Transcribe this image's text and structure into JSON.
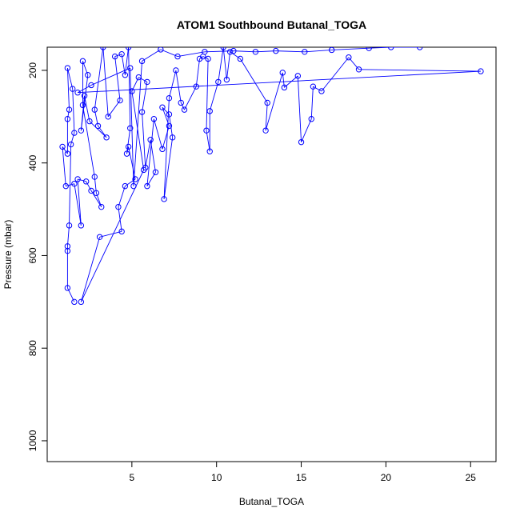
{
  "chart_data": {
    "type": "line",
    "title": "ATOM1 Southbound Butanal_TOGA",
    "xlabel": "Butanal_TOGA",
    "ylabel": "Pressure (mbar)",
    "xlim": [
      0,
      26.5
    ],
    "ylim": [
      1045,
      150
    ],
    "y_reversed": true,
    "xticks": [
      5,
      10,
      15,
      20,
      25
    ],
    "yticks": [
      200,
      400,
      600,
      800,
      1000
    ],
    "grid": false,
    "legend": "none",
    "series_color": "#0000ff",
    "series": [
      {
        "points": [
          [
            1.6,
            700
          ],
          [
            1.2,
            670
          ],
          [
            1.2,
            590
          ],
          [
            1.2,
            580
          ],
          [
            1.3,
            535
          ],
          [
            1.4,
            360
          ],
          [
            1.6,
            335
          ],
          [
            1.5,
            240
          ],
          [
            1.2,
            195
          ],
          [
            1.3,
            285
          ],
          [
            1.2,
            305
          ],
          [
            1.2,
            380
          ],
          [
            0.9,
            365
          ],
          [
            1.1,
            450
          ],
          [
            1.6,
            445
          ],
          [
            2.0,
            535
          ],
          [
            1.8,
            435
          ],
          [
            2.3,
            440
          ],
          [
            2.6,
            460
          ],
          [
            3.2,
            495
          ],
          [
            2.9,
            465
          ],
          [
            2.8,
            430
          ],
          [
            2.1,
            275
          ],
          [
            2.1,
            180
          ],
          [
            2.4,
            210
          ],
          [
            2.0,
            330
          ],
          [
            2.2,
            255
          ],
          [
            2.5,
            310
          ],
          [
            3.5,
            345
          ],
          [
            3.0,
            320
          ],
          [
            2.8,
            285
          ],
          [
            3.3,
            150
          ],
          [
            3.6,
            300
          ],
          [
            4.3,
            265
          ],
          [
            4.0,
            170
          ],
          [
            4.4,
            165
          ],
          [
            4.6,
            210
          ],
          [
            4.8,
            150
          ],
          [
            4.9,
            325
          ],
          [
            4.7,
            380
          ],
          [
            4.8,
            365
          ],
          [
            5.2,
            435
          ],
          [
            4.6,
            450
          ],
          [
            4.2,
            495
          ],
          [
            4.4,
            548
          ],
          [
            3.1,
            560
          ],
          [
            2.0,
            700
          ],
          [
            5.7,
            415
          ],
          [
            5.0,
            245
          ],
          [
            5.4,
            215
          ],
          [
            5.9,
            225
          ],
          [
            5.6,
            290
          ],
          [
            5.8,
            410
          ],
          [
            6.1,
            350
          ],
          [
            6.4,
            420
          ],
          [
            5.9,
            450
          ],
          [
            6.3,
            305
          ],
          [
            6.8,
            370
          ],
          [
            7.2,
            320
          ],
          [
            6.8,
            280
          ],
          [
            7.2,
            295
          ],
          [
            7.4,
            345
          ],
          [
            6.9,
            478
          ],
          [
            7.2,
            260
          ],
          [
            7.6,
            200
          ],
          [
            7.9,
            270
          ],
          [
            8.1,
            285
          ],
          [
            8.8,
            235
          ],
          [
            9.0,
            175
          ],
          [
            9.2,
            170
          ],
          [
            9.5,
            175
          ],
          [
            9.4,
            330
          ],
          [
            9.6,
            375
          ],
          [
            9.6,
            288
          ],
          [
            10.1,
            225
          ],
          [
            10.4,
            150
          ],
          [
            10.6,
            220
          ],
          [
            10.8,
            160
          ],
          [
            11.4,
            175
          ],
          [
            13.0,
            270
          ],
          [
            12.9,
            330
          ],
          [
            13.9,
            205
          ],
          [
            14.0,
            237
          ],
          [
            14.8,
            212
          ],
          [
            15.0,
            355
          ],
          [
            15.6,
            305
          ],
          [
            15.7,
            235
          ],
          [
            16.2,
            245
          ],
          [
            17.8,
            172
          ],
          [
            18.4,
            198
          ],
          [
            25.6,
            202
          ],
          [
            1.8,
            248
          ],
          [
            2.6,
            232
          ],
          [
            4.9,
            195
          ],
          [
            5.1,
            450
          ],
          [
            5.6,
            180
          ],
          [
            6.7,
            155
          ],
          [
            7.7,
            170
          ],
          [
            9.3,
            160
          ],
          [
            11.0,
            158
          ],
          [
            12.3,
            160
          ],
          [
            13.5,
            158
          ],
          [
            15.2,
            160
          ],
          [
            16.8,
            156
          ],
          [
            19.0,
            152
          ],
          [
            20.3,
            150
          ],
          [
            22.0,
            150
          ]
        ]
      }
    ]
  }
}
